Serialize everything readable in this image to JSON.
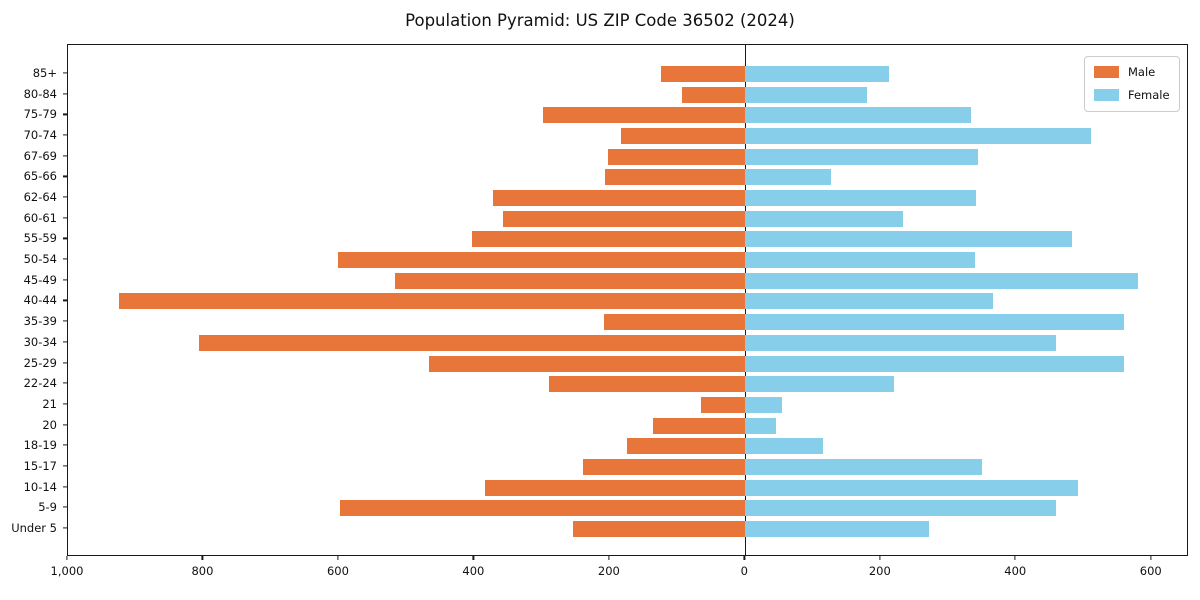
{
  "title": "Population Pyramid: US ZIP Code 36502 (2024)",
  "legend": {
    "male_label": "Male",
    "female_label": "Female",
    "position": "upper right"
  },
  "colors": {
    "male": "#e8763b",
    "female": "#87ceeb",
    "axis": "#1a1a1a",
    "background": "#ffffff",
    "legend_border": "#cccccc"
  },
  "chart_data": {
    "type": "bar",
    "subtype": "population-pyramid-horizontal",
    "title": "Population Pyramid: US ZIP Code 36502 (2024)",
    "xlabel": "",
    "ylabel": "",
    "grid": false,
    "zero_line": true,
    "legend_position": "upper right",
    "xlim": [
      -1000,
      655
    ],
    "categories_top_to_bottom": [
      "85+",
      "80-84",
      "75-79",
      "70-74",
      "67-69",
      "65-66",
      "62-64",
      "60-61",
      "55-59",
      "50-54",
      "45-49",
      "40-44",
      "35-39",
      "30-34",
      "25-29",
      "22-24",
      "21",
      "20",
      "18-19",
      "15-17",
      "10-14",
      "5-9",
      "Under 5"
    ],
    "series": [
      {
        "name": "Male",
        "side": "left",
        "color": "#e8763b",
        "values": [
          125,
          93,
          298,
          183,
          203,
          207,
          372,
          358,
          404,
          602,
          517,
          924,
          208,
          806,
          467,
          290,
          65,
          137,
          175,
          240,
          384,
          599,
          254
        ]
      },
      {
        "name": "Female",
        "side": "right",
        "color": "#87ceeb",
        "values": [
          212,
          180,
          333,
          510,
          343,
          126,
          341,
          233,
          482,
          339,
          580,
          365,
          559,
          458,
          559,
          220,
          54,
          45,
          115,
          350,
          491,
          458,
          271
        ]
      }
    ],
    "x_ticks": {
      "values": [
        -1000,
        -800,
        -600,
        -400,
        -200,
        0,
        200,
        400,
        600
      ],
      "labels": [
        "1,000",
        "800",
        "600",
        "400",
        "200",
        "0",
        "200",
        "400",
        "600"
      ]
    }
  }
}
